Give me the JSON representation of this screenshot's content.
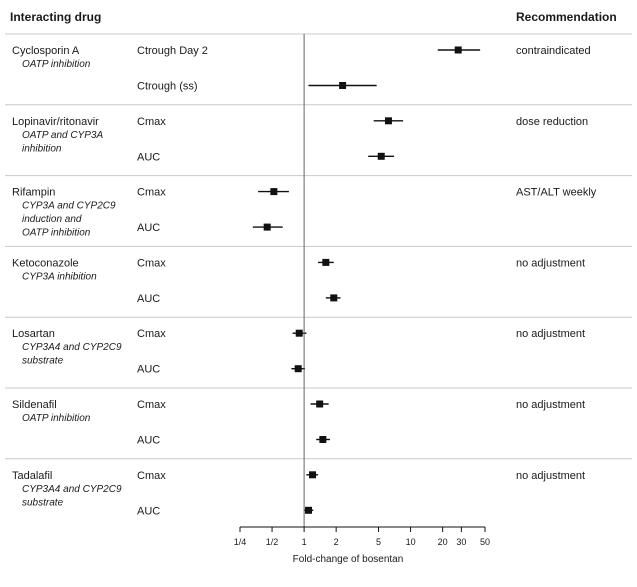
{
  "chart_data": {
    "type": "forest",
    "headers": {
      "left": "Interacting drug",
      "right": "Recommendation"
    },
    "xlabel": "Fold-change of bosentan",
    "xscale": "log",
    "xlim": [
      0.25,
      50
    ],
    "xticks": [
      "1/4",
      "1/2",
      "1",
      "2",
      "5",
      "10",
      "20",
      "30",
      "50"
    ],
    "groups": [
      {
        "drug": "Cyclosporin A",
        "mechanism": [
          "OATP inhibition"
        ],
        "recommendation": "contraindicated",
        "rows": [
          {
            "param": "Ctrough Day 2",
            "est": 28,
            "lo": 18,
            "hi": 45
          },
          {
            "param": "Ctrough (ss)",
            "est": 2.3,
            "lo": 1.1,
            "hi": 4.8
          }
        ]
      },
      {
        "drug": "Lopinavir/ritonavir",
        "mechanism": [
          "OATP and CYP3A",
          "inhibition"
        ],
        "recommendation": "dose reduction",
        "rows": [
          {
            "param": "Cmax",
            "est": 6.2,
            "lo": 4.5,
            "hi": 8.5
          },
          {
            "param": "AUC",
            "est": 5.3,
            "lo": 4.0,
            "hi": 7.0
          }
        ]
      },
      {
        "drug": "Rifampin",
        "mechanism": [
          "CYP3A and CYP2C9",
          "induction and",
          "OATP inhibition"
        ],
        "recommendation": "AST/ALT weekly",
        "rows": [
          {
            "param": "Cmax",
            "est": 0.52,
            "lo": 0.37,
            "hi": 0.72
          },
          {
            "param": "AUC",
            "est": 0.45,
            "lo": 0.33,
            "hi": 0.63
          }
        ]
      },
      {
        "drug": "Ketoconazole",
        "mechanism": [
          "CYP3A inhibition"
        ],
        "recommendation": "no adjustment",
        "rows": [
          {
            "param": "Cmax",
            "est": 1.6,
            "lo": 1.35,
            "hi": 1.9
          },
          {
            "param": "AUC",
            "est": 1.9,
            "lo": 1.6,
            "hi": 2.2
          }
        ]
      },
      {
        "drug": "Losartan",
        "mechanism": [
          "CYP3A4 and CYP2C9",
          "substrate"
        ],
        "recommendation": "no adjustment",
        "rows": [
          {
            "param": "Cmax",
            "est": 0.9,
            "lo": 0.78,
            "hi": 1.05
          },
          {
            "param": "AUC",
            "est": 0.88,
            "lo": 0.76,
            "hi": 1.02
          }
        ]
      },
      {
        "drug": "Sildenafil",
        "mechanism": [
          "OATP inhibition"
        ],
        "recommendation": "no adjustment",
        "rows": [
          {
            "param": "Cmax",
            "est": 1.4,
            "lo": 1.15,
            "hi": 1.7
          },
          {
            "param": "AUC",
            "est": 1.5,
            "lo": 1.3,
            "hi": 1.75
          }
        ]
      },
      {
        "drug": "Tadalafil",
        "mechanism": [
          "CYP3A4 and CYP2C9",
          "substrate"
        ],
        "recommendation": "no adjustment",
        "rows": [
          {
            "param": "Cmax",
            "est": 1.2,
            "lo": 1.05,
            "hi": 1.35
          },
          {
            "param": "AUC",
            "est": 1.1,
            "lo": 1.0,
            "hi": 1.22
          }
        ]
      }
    ]
  }
}
